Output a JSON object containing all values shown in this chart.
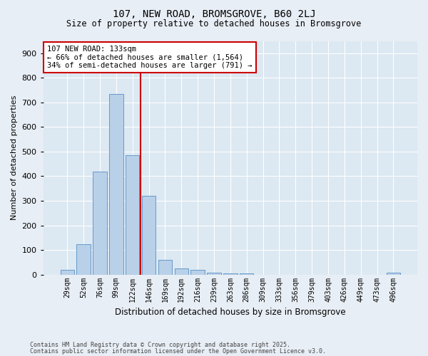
{
  "title1": "107, NEW ROAD, BROMSGROVE, B60 2LJ",
  "title2": "Size of property relative to detached houses in Bromsgrove",
  "xlabel": "Distribution of detached houses by size in Bromsgrove",
  "ylabel": "Number of detached properties",
  "categories": [
    "29sqm",
    "52sqm",
    "76sqm",
    "99sqm",
    "122sqm",
    "146sqm",
    "169sqm",
    "192sqm",
    "216sqm",
    "239sqm",
    "263sqm",
    "286sqm",
    "309sqm",
    "333sqm",
    "356sqm",
    "379sqm",
    "403sqm",
    "426sqm",
    "449sqm",
    "473sqm",
    "496sqm"
  ],
  "values": [
    20,
    122,
    420,
    735,
    485,
    320,
    60,
    25,
    20,
    8,
    5,
    4,
    0,
    0,
    0,
    0,
    0,
    0,
    0,
    0,
    8
  ],
  "bar_color": "#b8d0e8",
  "bar_edge_color": "#6699cc",
  "vline_color": "#cc0000",
  "vline_x": 4.5,
  "annotation_text": "107 NEW ROAD: 133sqm\n← 66% of detached houses are smaller (1,564)\n34% of semi-detached houses are larger (791) →",
  "annotation_box_color": "#ffffff",
  "annotation_box_edge": "#cc0000",
  "ylim": [
    0,
    950
  ],
  "yticks": [
    0,
    100,
    200,
    300,
    400,
    500,
    600,
    700,
    800,
    900
  ],
  "footnote1": "Contains HM Land Registry data © Crown copyright and database right 2025.",
  "footnote2": "Contains public sector information licensed under the Open Government Licence v3.0.",
  "bg_color": "#e8eef5",
  "plot_bg_color": "#dce8f2",
  "title_fontsize": 10,
  "subtitle_fontsize": 8.5,
  "ylabel_fontsize": 8,
  "xlabel_fontsize": 8.5,
  "footnote_fontsize": 6,
  "annot_fontsize": 7.5,
  "ytick_fontsize": 8,
  "xtick_fontsize": 7
}
